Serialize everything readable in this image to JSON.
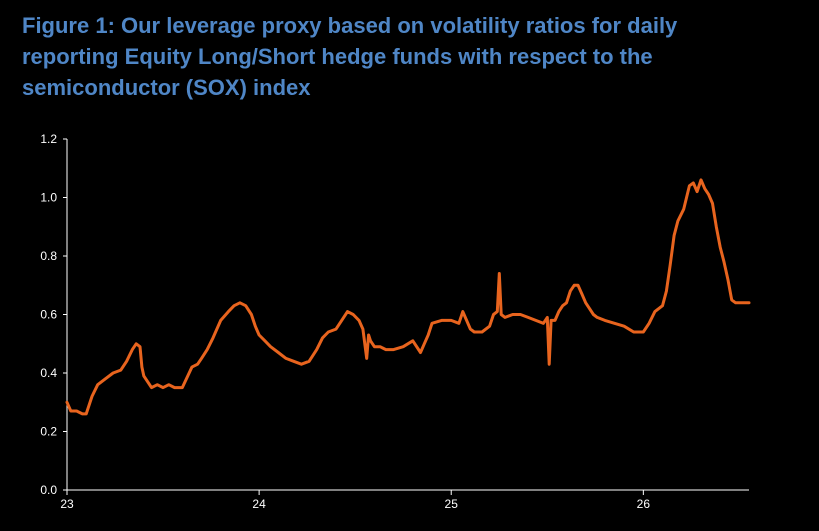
{
  "title_lines": [
    "Figure 1: Our leverage proxy based on volatility ratios for daily",
    "reporting Equity Long/Short hedge funds with respect to the",
    "semiconductor (SOX) index"
  ],
  "colors": {
    "background": "#000000",
    "title": "#4f86c6",
    "series": "#e8641e",
    "axis": "#ffffff"
  },
  "chart_data": {
    "type": "line",
    "title": "Figure 1: Our leverage proxy based on volatility ratios for daily reporting Equity Long/Short hedge funds with respect to the semiconductor (SOX) index",
    "xlabel": "",
    "ylabel": "",
    "xlim": [
      23,
      26.55
    ],
    "ylim": [
      0,
      1.2
    ],
    "grid": false,
    "legend": "none",
    "x_ticks": [
      23,
      24,
      25,
      26
    ],
    "x_tick_labels": [
      "23",
      "24",
      "25",
      "26"
    ],
    "y_ticks": [
      0,
      0.2,
      0.4,
      0.6,
      0.8,
      1.0,
      1.2
    ],
    "y_tick_labels": [
      "0.0",
      "0.2",
      "0.4",
      "0.6",
      "0.8",
      "1.0",
      "1.2"
    ],
    "series": [
      {
        "x": [
          23.0,
          23.02,
          23.05,
          23.08,
          23.1,
          23.13,
          23.16,
          23.2,
          23.24,
          23.28,
          23.31,
          23.34,
          23.36,
          23.38,
          23.39,
          23.4,
          23.42,
          23.44,
          23.47,
          23.5,
          23.53,
          23.56,
          23.6,
          23.65,
          23.68,
          23.7,
          23.73,
          23.76,
          23.8,
          23.84,
          23.87,
          23.9,
          23.93,
          23.96,
          23.98,
          24.0,
          24.03,
          24.06,
          24.1,
          24.14,
          24.18,
          24.22,
          24.26,
          24.3,
          24.33,
          24.36,
          24.4,
          24.43,
          24.46,
          24.49,
          24.52,
          24.54,
          24.56,
          24.57,
          24.58,
          24.6,
          24.63,
          24.66,
          24.7,
          24.75,
          24.8,
          24.84,
          24.86,
          24.88,
          24.9,
          24.95,
          25.0,
          25.04,
          25.06,
          25.08,
          25.1,
          25.12,
          25.16,
          25.2,
          25.22,
          25.24,
          25.25,
          25.26,
          25.28,
          25.32,
          25.36,
          25.4,
          25.44,
          25.48,
          25.5,
          25.51,
          25.52,
          25.54,
          25.56,
          25.58,
          25.6,
          25.62,
          25.64,
          25.66,
          25.68,
          25.7,
          25.72,
          25.74,
          25.76,
          25.8,
          25.85,
          25.9,
          25.95,
          26.0,
          26.03,
          26.06,
          26.1,
          26.12,
          26.14,
          26.16,
          26.18,
          26.21,
          26.24,
          26.26,
          26.28,
          26.3,
          26.32,
          26.34,
          26.36,
          26.38,
          26.4,
          26.42,
          26.44,
          26.46,
          26.48,
          26.52,
          26.55
        ],
        "y": [
          0.3,
          0.27,
          0.27,
          0.26,
          0.26,
          0.32,
          0.36,
          0.38,
          0.4,
          0.41,
          0.44,
          0.48,
          0.5,
          0.49,
          0.42,
          0.39,
          0.37,
          0.35,
          0.36,
          0.35,
          0.36,
          0.35,
          0.35,
          0.42,
          0.43,
          0.45,
          0.48,
          0.52,
          0.58,
          0.61,
          0.63,
          0.64,
          0.63,
          0.6,
          0.56,
          0.53,
          0.51,
          0.49,
          0.47,
          0.45,
          0.44,
          0.43,
          0.44,
          0.48,
          0.52,
          0.54,
          0.55,
          0.58,
          0.61,
          0.6,
          0.58,
          0.55,
          0.45,
          0.53,
          0.51,
          0.49,
          0.49,
          0.48,
          0.48,
          0.49,
          0.51,
          0.47,
          0.5,
          0.53,
          0.57,
          0.58,
          0.58,
          0.57,
          0.61,
          0.58,
          0.55,
          0.54,
          0.54,
          0.56,
          0.6,
          0.61,
          0.74,
          0.6,
          0.59,
          0.6,
          0.6,
          0.59,
          0.58,
          0.57,
          0.59,
          0.43,
          0.58,
          0.58,
          0.61,
          0.63,
          0.64,
          0.68,
          0.7,
          0.7,
          0.67,
          0.64,
          0.62,
          0.6,
          0.59,
          0.58,
          0.57,
          0.56,
          0.54,
          0.54,
          0.57,
          0.61,
          0.63,
          0.68,
          0.77,
          0.87,
          0.92,
          0.96,
          1.04,
          1.05,
          1.02,
          1.06,
          1.03,
          1.01,
          0.98,
          0.9,
          0.83,
          0.78,
          0.72,
          0.65,
          0.64,
          0.64,
          0.64
        ]
      }
    ]
  }
}
